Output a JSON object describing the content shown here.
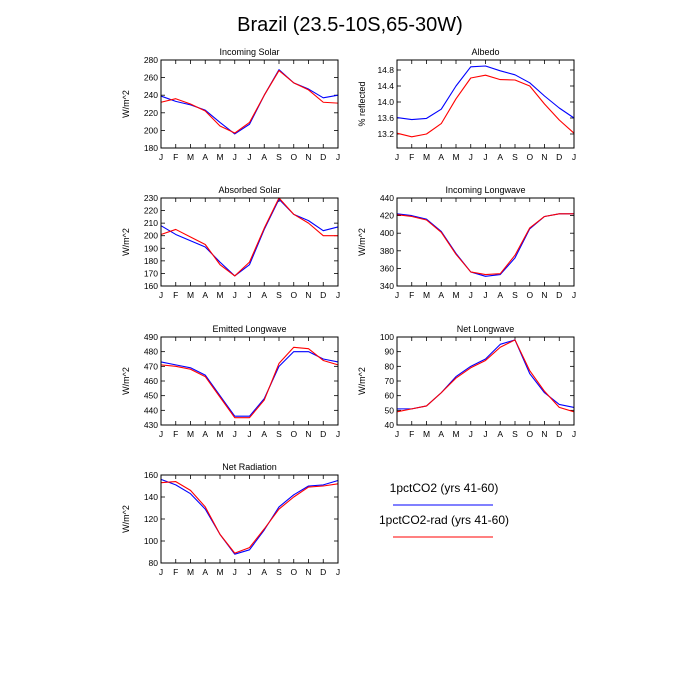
{
  "title": "Brazil (23.5-10S,65-30W)",
  "months": [
    "J",
    "F",
    "M",
    "A",
    "M",
    "J",
    "J",
    "A",
    "S",
    "O",
    "N",
    "D",
    "J"
  ],
  "legend": [
    {
      "name": "1pctCO2 (yrs 41-60)",
      "color": "#0000ff"
    },
    {
      "name": "1pctCO2-rad (yrs 41-60)",
      "color": "#ff0000"
    }
  ],
  "chart_data": [
    {
      "type": "line",
      "title": "Incoming Solar",
      "ylabel": "W/m^2",
      "ylim": [
        180,
        280
      ],
      "yticks": [
        180,
        200,
        220,
        240,
        260,
        280
      ],
      "ytick_labels": [
        "180",
        "200",
        "220",
        "240",
        "260",
        "280"
      ],
      "categories": [
        "J",
        "F",
        "M",
        "A",
        "M",
        "J",
        "J",
        "A",
        "S",
        "O",
        "N",
        "D",
        "J"
      ],
      "series": [
        {
          "name": "1pctCO2 (yrs 41-60)",
          "color": "#0000ff",
          "values": [
            239,
            233,
            229,
            223,
            209,
            196,
            207,
            240,
            269,
            254,
            247,
            237,
            240
          ]
        },
        {
          "name": "1pctCO2-rad (yrs 41-60)",
          "color": "#ff0000",
          "values": [
            232,
            236,
            230,
            222,
            205,
            197,
            209,
            240,
            268,
            254,
            246,
            232,
            231
          ]
        }
      ]
    },
    {
      "type": "line",
      "title": "Albedo",
      "ylabel": "% reflected",
      "ylim": [
        12.85,
        15.05
      ],
      "yticks": [
        13.2,
        13.6,
        14.0,
        14.4,
        14.8
      ],
      "ytick_labels": [
        "13.2",
        "13.6",
        "14.0",
        "14.4",
        "14.8"
      ],
      "categories": [
        "J",
        "F",
        "M",
        "A",
        "M",
        "J",
        "J",
        "A",
        "S",
        "O",
        "N",
        "D",
        "J"
      ],
      "series": [
        {
          "name": "1pctCO2 (yrs 41-60)",
          "color": "#0000ff",
          "values": [
            13.61,
            13.56,
            13.59,
            13.82,
            14.4,
            14.88,
            14.9,
            14.78,
            14.68,
            14.48,
            14.15,
            13.85,
            13.6
          ]
        },
        {
          "name": "1pctCO2-rad (yrs 41-60)",
          "color": "#ff0000",
          "values": [
            13.22,
            13.13,
            13.2,
            13.46,
            14.08,
            14.6,
            14.67,
            14.56,
            14.55,
            14.4,
            13.95,
            13.55,
            13.22
          ]
        }
      ]
    },
    {
      "type": "line",
      "title": "Absorbed Solar",
      "ylabel": "W/m^2",
      "ylim": [
        160,
        230
      ],
      "yticks": [
        160,
        170,
        180,
        190,
        200,
        210,
        220,
        230
      ],
      "ytick_labels": [
        "160",
        "170",
        "180",
        "190",
        "200",
        "210",
        "220",
        "230"
      ],
      "categories": [
        "J",
        "F",
        "M",
        "A",
        "M",
        "J",
        "J",
        "A",
        "S",
        "O",
        "N",
        "D",
        "J"
      ],
      "series": [
        {
          "name": "1pctCO2 (yrs 41-60)",
          "color": "#0000ff",
          "values": [
            208,
            201,
            196,
            191,
            179,
            168,
            177,
            205,
            229,
            217,
            212,
            204,
            207
          ]
        },
        {
          "name": "1pctCO2-rad (yrs 41-60)",
          "color": "#ff0000",
          "values": [
            201,
            205,
            199,
            193,
            177,
            168,
            179,
            206,
            230,
            217,
            210,
            200,
            200
          ]
        }
      ]
    },
    {
      "type": "line",
      "title": "Incoming Longwave",
      "ylabel": "W/m^2",
      "ylim": [
        340,
        440
      ],
      "yticks": [
        340,
        360,
        380,
        400,
        420,
        440
      ],
      "ytick_labels": [
        "340",
        "360",
        "380",
        "400",
        "420",
        "440"
      ],
      "categories": [
        "J",
        "F",
        "M",
        "A",
        "M",
        "J",
        "J",
        "A",
        "S",
        "O",
        "N",
        "D",
        "J"
      ],
      "series": [
        {
          "name": "1pctCO2 (yrs 41-60)",
          "color": "#0000ff",
          "values": [
            422,
            420,
            416,
            402,
            377,
            356,
            351,
            353,
            372,
            405,
            419,
            422,
            422
          ]
        },
        {
          "name": "1pctCO2-rad (yrs 41-60)",
          "color": "#ff0000",
          "values": [
            421,
            419,
            415,
            401,
            376,
            356,
            353,
            354,
            375,
            406,
            419,
            422,
            422
          ]
        }
      ]
    },
    {
      "type": "line",
      "title": "Emitted Longwave",
      "ylabel": "W/m^2",
      "ylim": [
        430,
        490
      ],
      "yticks": [
        430,
        440,
        450,
        460,
        470,
        480,
        490
      ],
      "ytick_labels": [
        "430",
        "440",
        "450",
        "460",
        "470",
        "480",
        "490"
      ],
      "categories": [
        "J",
        "F",
        "M",
        "A",
        "M",
        "J",
        "J",
        "A",
        "S",
        "O",
        "N",
        "D",
        "J"
      ],
      "series": [
        {
          "name": "1pctCO2 (yrs 41-60)",
          "color": "#0000ff",
          "values": [
            473,
            471,
            469,
            464,
            450,
            436,
            436,
            448,
            470,
            480,
            480,
            475,
            473
          ]
        },
        {
          "name": "1pctCO2-rad (yrs 41-60)",
          "color": "#ff0000",
          "values": [
            471,
            470,
            468,
            463,
            449,
            435,
            435,
            447,
            472,
            483,
            482,
            474,
            471
          ]
        }
      ]
    },
    {
      "type": "line",
      "title": "Net Longwave",
      "ylabel": "W/m^2",
      "ylim": [
        40,
        100
      ],
      "yticks": [
        40,
        50,
        60,
        70,
        80,
        90,
        100
      ],
      "ytick_labels": [
        "40",
        "50",
        "60",
        "70",
        "80",
        "90",
        "100"
      ],
      "categories": [
        "J",
        "F",
        "M",
        "A",
        "M",
        "J",
        "J",
        "A",
        "S",
        "O",
        "N",
        "D",
        "J"
      ],
      "series": [
        {
          "name": "1pctCO2 (yrs 41-60)",
          "color": "#0000ff",
          "values": [
            51,
            51,
            53,
            62,
            73,
            80,
            85,
            95,
            98,
            75,
            62,
            54,
            52
          ]
        },
        {
          "name": "1pctCO2-rad (yrs 41-60)",
          "color": "#ff0000",
          "values": [
            49,
            51,
            53,
            62,
            72,
            79,
            84,
            93,
            98,
            77,
            63,
            52,
            49
          ]
        }
      ]
    },
    {
      "type": "line",
      "title": "Net Radiation",
      "ylabel": "W/m^2",
      "ylim": [
        80,
        160
      ],
      "yticks": [
        80,
        100,
        120,
        140,
        160
      ],
      "ytick_labels": [
        "80",
        "100",
        "120",
        "140",
        "160"
      ],
      "categories": [
        "J",
        "F",
        "M",
        "A",
        "M",
        "J",
        "J",
        "A",
        "S",
        "O",
        "N",
        "D",
        "J"
      ],
      "series": [
        {
          "name": "1pctCO2 (yrs 41-60)",
          "color": "#0000ff",
          "values": [
            156,
            151,
            143,
            129,
            106,
            88,
            92,
            110,
            131,
            142,
            150,
            151,
            155
          ]
        },
        {
          "name": "1pctCO2-rad (yrs 41-60)",
          "color": "#ff0000",
          "values": [
            153,
            154,
            146,
            131,
            106,
            89,
            94,
            111,
            129,
            140,
            149,
            150,
            152
          ]
        }
      ]
    }
  ]
}
